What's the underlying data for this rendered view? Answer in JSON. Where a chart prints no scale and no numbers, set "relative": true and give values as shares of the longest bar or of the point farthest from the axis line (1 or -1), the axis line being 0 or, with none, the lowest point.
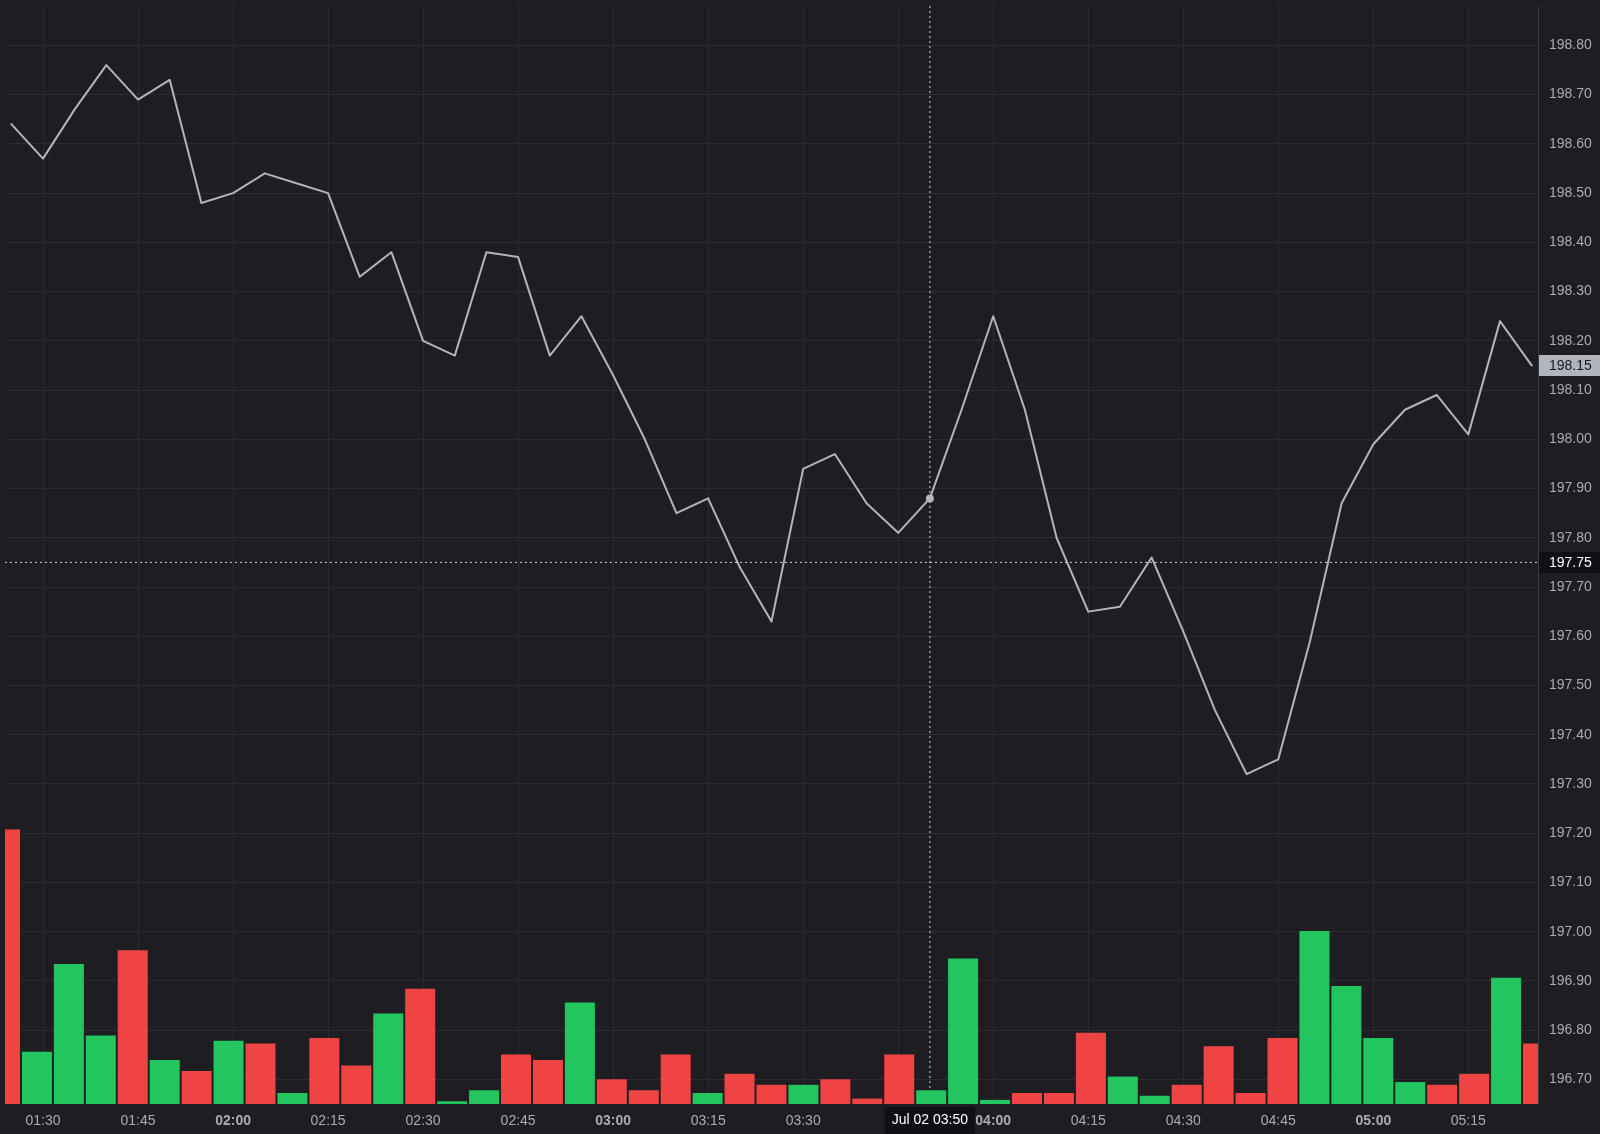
{
  "chart_data": [
    {
      "type": "line",
      "color": "#b4b4b9",
      "x": [
        "--07-02T01:25",
        "--07-02T01:30",
        "--07-02T01:35",
        "--07-02T01:40",
        "--07-02T01:45",
        "--07-02T01:50",
        "--07-02T01:55",
        "--07-02T02:00",
        "--07-02T02:05",
        "--07-02T02:10",
        "--07-02T02:15",
        "--07-02T02:20",
        "--07-02T02:25",
        "--07-02T02:30",
        "--07-02T02:35",
        "--07-02T02:40",
        "--07-02T02:45",
        "--07-02T02:50",
        "--07-02T02:55",
        "--07-02T03:00",
        "--07-02T03:05",
        "--07-02T03:10",
        "--07-02T03:15",
        "--07-02T03:20",
        "--07-02T03:25",
        "--07-02T03:30",
        "--07-02T03:35",
        "--07-02T03:40",
        "--07-02T03:45",
        "--07-02T03:50",
        "--07-02T03:55",
        "--07-02T04:00",
        "--07-02T04:05",
        "--07-02T04:10",
        "--07-02T04:15",
        "--07-02T04:20",
        "--07-02T04:25",
        "--07-02T04:30",
        "--07-02T04:35",
        "--07-02T04:40",
        "--07-02T04:45",
        "--07-02T04:50",
        "--07-02T04:55",
        "--07-02T05:00",
        "--07-02T05:05",
        "--07-02T05:10",
        "--07-02T05:15",
        "--07-02T05:20",
        "--07-02T05:25"
      ],
      "values": [
        198.64,
        198.57,
        198.67,
        198.76,
        198.69,
        198.73,
        198.48,
        198.5,
        198.54,
        198.52,
        198.5,
        198.33,
        198.38,
        198.2,
        198.17,
        198.38,
        198.37,
        198.17,
        198.25,
        198.13,
        198.0,
        197.85,
        197.88,
        197.74,
        197.63,
        197.94,
        197.97,
        197.87,
        197.81,
        197.88,
        198.06,
        198.25,
        198.06,
        197.8,
        197.65,
        197.66,
        197.76,
        197.61,
        197.45,
        197.32,
        197.35,
        197.59,
        197.87,
        197.99,
        198.06,
        198.09,
        198.01,
        198.24,
        198.15
      ],
      "value_labels": [
        null,
        null,
        null,
        null,
        null,
        null,
        null,
        null,
        null,
        null,
        null,
        null,
        null,
        null,
        null,
        null,
        null,
        null,
        null,
        null,
        null,
        null,
        null,
        null,
        null,
        null,
        null,
        null,
        null,
        null,
        null,
        null,
        null,
        null,
        null,
        null,
        null,
        null,
        null,
        null,
        null,
        null,
        null,
        null,
        null,
        null,
        null,
        null,
        "198.15"
      ],
      "xlim": [
        "--07-02T01:24",
        "--07-02T05:26"
      ],
      "xticks": [
        {
          "value": "--07-02T01:30",
          "label": "01:30"
        },
        {
          "value": "--07-02T01:45",
          "label": "01:45"
        },
        {
          "value": "--07-02T02:00",
          "label": "02:00"
        },
        {
          "value": "--07-02T02:15",
          "label": "02:15"
        },
        {
          "value": "--07-02T02:30",
          "label": "02:30"
        },
        {
          "value": "--07-02T02:45",
          "label": "02:45"
        },
        {
          "value": "--07-02T03:00",
          "label": "03:00"
        },
        {
          "value": "--07-02T03:15",
          "label": "03:15"
        },
        {
          "value": "--07-02T03:30",
          "label": "03:30"
        },
        {
          "value": "--07-02T03:45",
          "label": null
        },
        {
          "value": "--07-02T04:00",
          "label": "04:00"
        },
        {
          "value": "--07-02T04:15",
          "label": "04:15"
        },
        {
          "value": "--07-02T04:30",
          "label": "04:30"
        },
        {
          "value": "--07-02T04:45",
          "label": "04:45"
        },
        {
          "value": "--07-02T05:00",
          "label": "05:00"
        },
        {
          "value": "--07-02T05:15",
          "label": "05:15"
        }
      ],
      "ylim": [
        196.65,
        198.88
      ],
      "yticks": [
        {
          "value": 196.7,
          "label": "196.70"
        },
        {
          "value": 196.8,
          "label": "196.80"
        },
        {
          "value": 196.9,
          "label": "196.90"
        },
        {
          "value": 197,
          "label": "197.00"
        },
        {
          "value": 197.1,
          "label": "197.10"
        },
        {
          "value": 197.2,
          "label": "197.20"
        },
        {
          "value": 197.3,
          "label": "197.30"
        },
        {
          "value": 197.4,
          "label": "197.40"
        },
        {
          "value": 197.5,
          "label": "197.50"
        },
        {
          "value": 197.6,
          "label": "197.60"
        },
        {
          "value": 197.7,
          "label": "197.70"
        },
        {
          "value": 197.8,
          "label": "197.80"
        },
        {
          "value": 197.9,
          "label": "197.90"
        },
        {
          "value": 198,
          "label": "198.00"
        },
        {
          "value": 198.1,
          "label": "198.10"
        },
        {
          "value": 198.2,
          "label": "198.20"
        },
        {
          "value": 198.3,
          "label": "198.30"
        },
        {
          "value": 198.4,
          "label": "198.40"
        },
        {
          "value": 198.5,
          "label": "198.50"
        },
        {
          "value": 198.6,
          "label": "198.60"
        },
        {
          "value": 198.7,
          "label": "198.70"
        },
        {
          "value": 198.8,
          "label": "198.80"
        }
      ],
      "grid": true,
      "ref_lines": [
        {
          "axis": "x",
          "value": "--07-02T03:50",
          "label": "Jul 02 03:50",
          "color": "#d1d4dc",
          "line_style": "dotted"
        },
        {
          "axis": "y",
          "value": 197.75,
          "label": "197.75",
          "color": "#d1d4dc",
          "line_style": "dotted"
        }
      ]
    },
    {
      "type": "bar",
      "relative": true,
      "tick_labels": false,
      "categories": [
        null,
        null,
        null,
        null,
        null,
        null,
        null,
        null,
        null,
        null,
        null,
        null,
        null,
        null,
        null,
        null,
        null,
        null,
        null,
        null,
        null,
        null,
        null,
        null,
        null,
        null,
        null,
        null,
        null,
        null,
        null,
        null,
        null,
        null,
        null,
        null,
        null,
        null,
        null,
        null,
        null,
        null,
        null,
        null,
        null,
        null,
        null,
        null,
        null
      ],
      "values": [
        1.0,
        0.19,
        0.51,
        0.25,
        0.56,
        0.16,
        0.12,
        0.23,
        0.22,
        0.04,
        0.24,
        0.14,
        0.33,
        0.42,
        0.01,
        0.05,
        0.18,
        0.16,
        0.37,
        0.09,
        0.05,
        0.18,
        0.04,
        0.11,
        0.07,
        0.07,
        0.09,
        0.02,
        0.18,
        0.05,
        0.53,
        0.015,
        0.04,
        0.04,
        0.26,
        0.1,
        0.03,
        0.07,
        0.21,
        0.04,
        0.24,
        0.63,
        0.43,
        0.24,
        0.08,
        0.07,
        0.11,
        0.46,
        0.22
      ],
      "colors": [
        "#ef4444",
        "#22c55e",
        "#22c55e",
        "#22c55e",
        "#ef4444",
        "#22c55e",
        "#ef4444",
        "#22c55e",
        "#ef4444",
        "#22c55e",
        "#ef4444",
        "#ef4444",
        "#22c55e",
        "#ef4444",
        "#22c55e",
        "#22c55e",
        "#ef4444",
        "#ef4444",
        "#22c55e",
        "#ef4444",
        "#ef4444",
        "#ef4444",
        "#22c55e",
        "#ef4444",
        "#ef4444",
        "#22c55e",
        "#ef4444",
        "#ef4444",
        "#ef4444",
        "#22c55e",
        "#22c55e",
        "#22c55e",
        "#ef4444",
        "#ef4444",
        "#ef4444",
        "#22c55e",
        "#22c55e",
        "#ef4444",
        "#ef4444",
        "#ef4444",
        "#ef4444",
        "#22c55e",
        "#22c55e",
        "#22c55e",
        "#22c55e",
        "#ef4444",
        "#ef4444",
        "#22c55e",
        "#ef4444"
      ]
    }
  ]
}
